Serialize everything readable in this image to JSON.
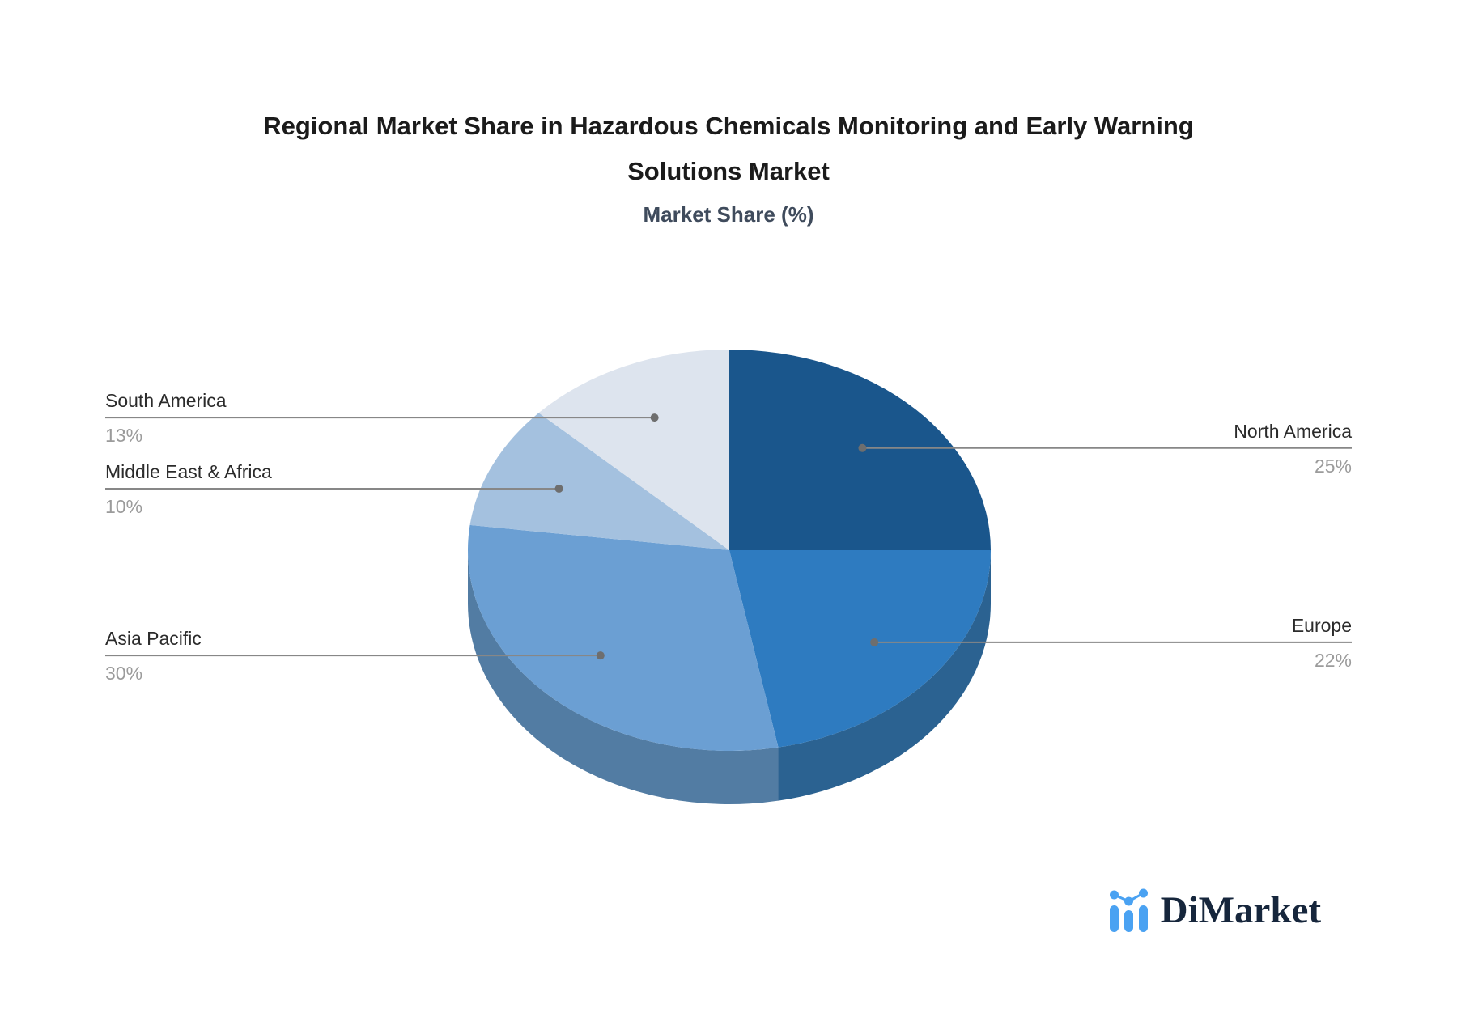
{
  "title": {
    "line1": "Regional Market Share in Hazardous Chemicals Monitoring and Early Warning",
    "line2": "Solutions Market"
  },
  "subtitle": "Market Share (%)",
  "chart_data": {
    "type": "pie",
    "title": "Regional Market Share in Hazardous Chemicals Monitoring and Early Warning Solutions Market",
    "subtitle": "Market Share (%)",
    "style": "3d-pie",
    "start_angle_deg": 0,
    "direction": "clockwise",
    "categories": [
      "North America",
      "Europe",
      "Asia Pacific",
      "Middle East & Africa",
      "South America"
    ],
    "values": [
      25,
      22,
      30,
      10,
      13
    ],
    "unit": "%",
    "pct_labels": [
      "25%",
      "22%",
      "30%",
      "10%",
      "13%"
    ],
    "slice_colors": [
      "#1a568c",
      "#2e7bc0",
      "#6b9fd3",
      "#a4c1df",
      "#dde4ee"
    ],
    "rim_colors": [
      "#1a568c",
      "#2b6291",
      "#527ca3",
      "#a4c1df",
      "#dde4ee"
    ],
    "callout_line_color": "#878787",
    "callout_dot_color": "#6e6e6e",
    "name_color": "#2b2b2b",
    "pct_color": "#9b9b9b",
    "legend_position": "callouts"
  },
  "logo": {
    "text": "DiMarket",
    "icon": "bar-line-chart-icon",
    "icon_color": "#4aa2f2",
    "text_color": "#16263c"
  }
}
